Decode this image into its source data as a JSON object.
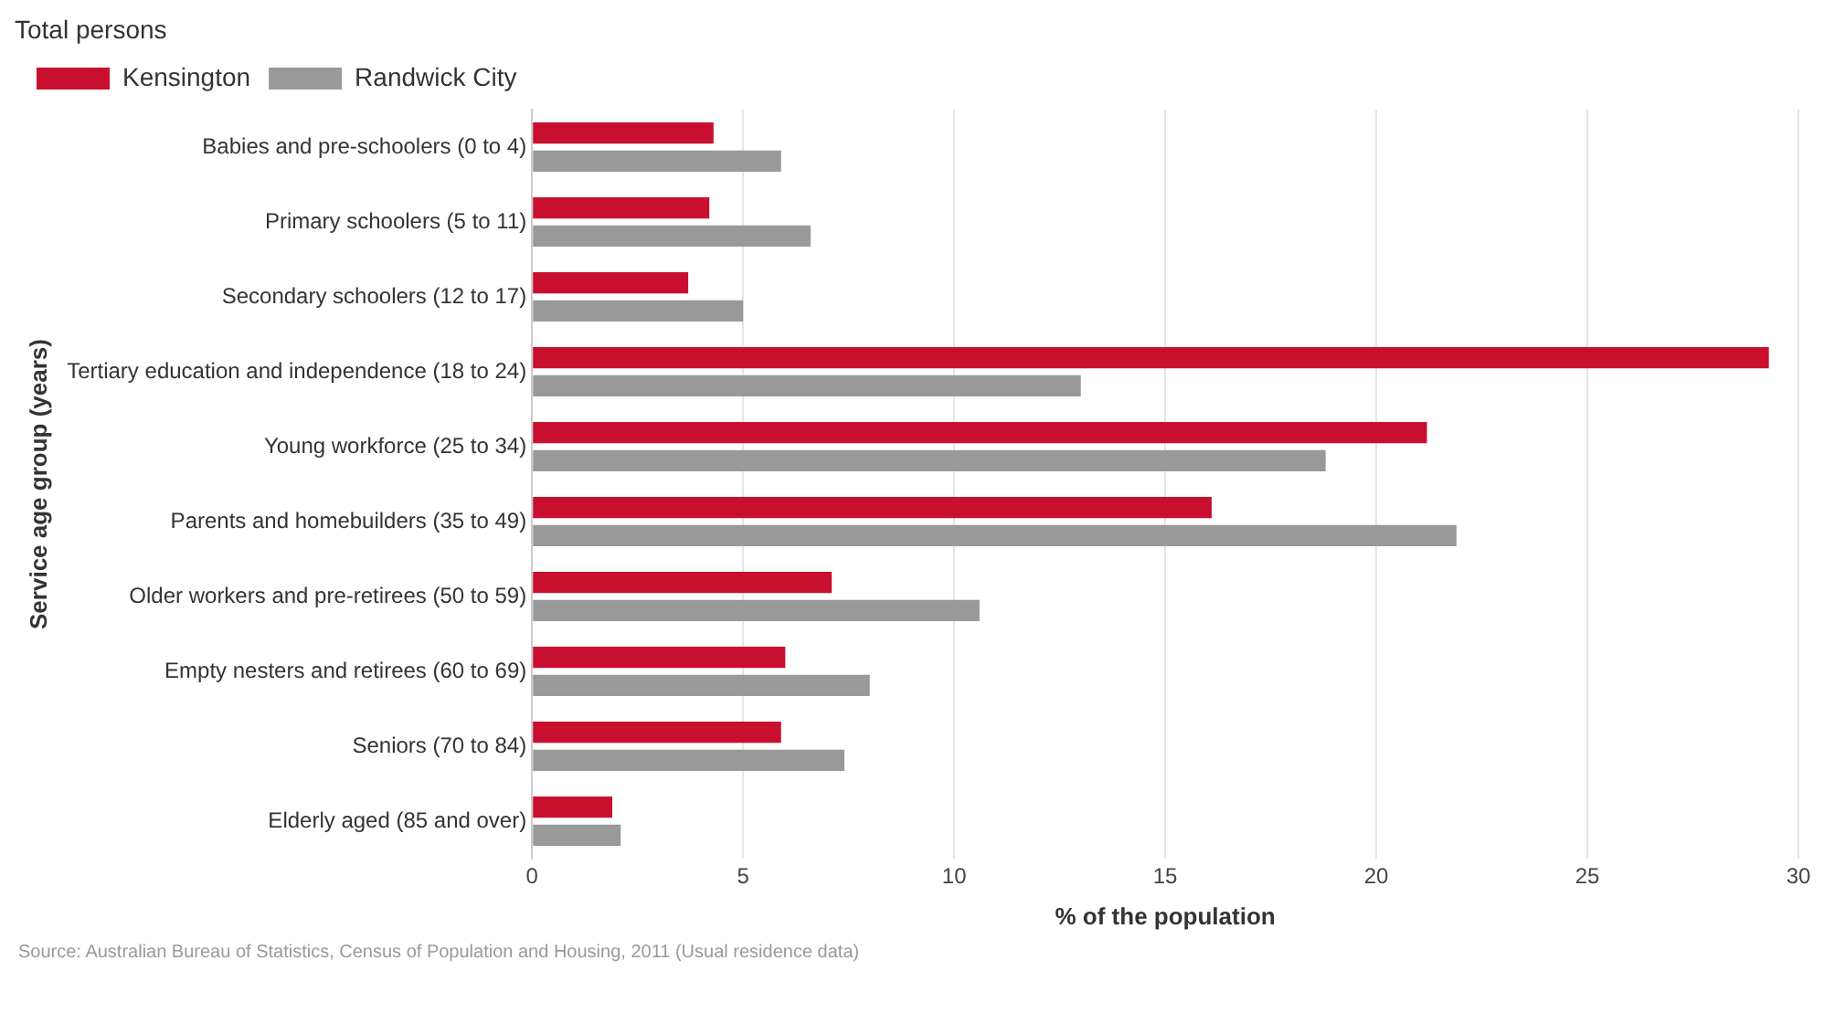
{
  "chart_data": {
    "type": "bar",
    "orientation": "horizontal",
    "subtitle": "Total persons",
    "xlabel": "% of the population",
    "ylabel": "Service age group (years)",
    "categories": [
      "Babies and pre-schoolers (0 to 4)",
      "Primary schoolers (5 to 11)",
      "Secondary schoolers (12 to 17)",
      "Tertiary education and independence (18 to 24)",
      "Young workforce (25 to 34)",
      "Parents and homebuilders (35 to 49)",
      "Older workers and pre-retirees (50 to 59)",
      "Empty nesters and retirees (60 to 69)",
      "Seniors (70 to 84)",
      "Elderly aged (85 and over)"
    ],
    "series": [
      {
        "name": "Kensington",
        "color": "#c8102e",
        "values": [
          4.3,
          4.2,
          3.7,
          29.3,
          21.2,
          16.1,
          7.1,
          6.0,
          5.9,
          1.9
        ]
      },
      {
        "name": "Randwick City",
        "color": "#999999",
        "values": [
          5.9,
          6.6,
          5.0,
          13.0,
          18.8,
          21.9,
          10.6,
          8.0,
          7.4,
          2.1
        ]
      }
    ],
    "xlim": [
      0,
      30
    ],
    "xticks": [
      0,
      5,
      10,
      15,
      20,
      25,
      30
    ],
    "grid": "x",
    "legend": "top left",
    "annotations": [
      "Source: Australian Bureau of Statistics, Census of Population and Housing, 2011 (Usual residence data)"
    ]
  }
}
